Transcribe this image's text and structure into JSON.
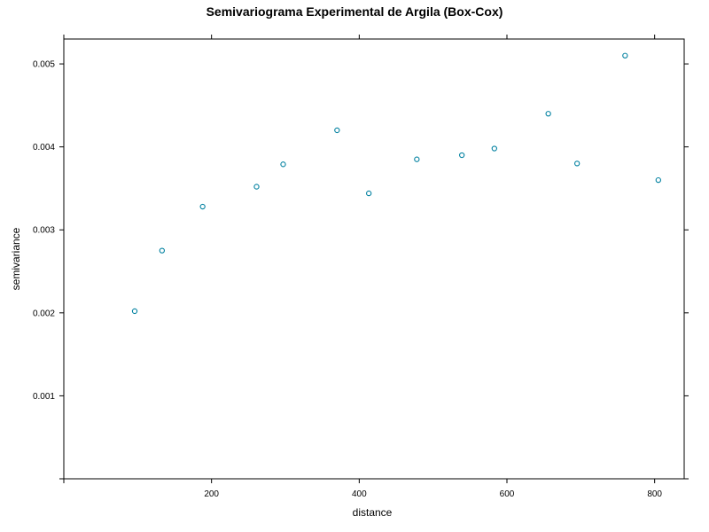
{
  "chart_data": {
    "type": "scatter",
    "title": "Semivariograma Experimental de Argila (Box-Cox)",
    "xlabel": "distance",
    "ylabel": "semivariance",
    "xlim": [
      0,
      840
    ],
    "ylim": [
      0,
      0.0053
    ],
    "x_ticks": [
      200,
      400,
      600,
      800
    ],
    "x_tick_labels": [
      "200",
      "400",
      "600",
      "800"
    ],
    "y_ticks": [
      0.001,
      0.002,
      0.003,
      0.004,
      0.005
    ],
    "y_tick_labels": [
      "0.001",
      "0.002",
      "0.003",
      "0.004",
      "0.005"
    ],
    "grid": false,
    "marker_color": "#0080a0",
    "points": [
      {
        "x": 96,
        "y": 0.00202
      },
      {
        "x": 133,
        "y": 0.00275
      },
      {
        "x": 188,
        "y": 0.00328
      },
      {
        "x": 261,
        "y": 0.00352
      },
      {
        "x": 297,
        "y": 0.00379
      },
      {
        "x": 370,
        "y": 0.0042
      },
      {
        "x": 413,
        "y": 0.00344
      },
      {
        "x": 478,
        "y": 0.00385
      },
      {
        "x": 539,
        "y": 0.0039
      },
      {
        "x": 583,
        "y": 0.00398
      },
      {
        "x": 656,
        "y": 0.0044
      },
      {
        "x": 695,
        "y": 0.0038
      },
      {
        "x": 760,
        "y": 0.0051
      },
      {
        "x": 805,
        "y": 0.0036
      }
    ]
  }
}
